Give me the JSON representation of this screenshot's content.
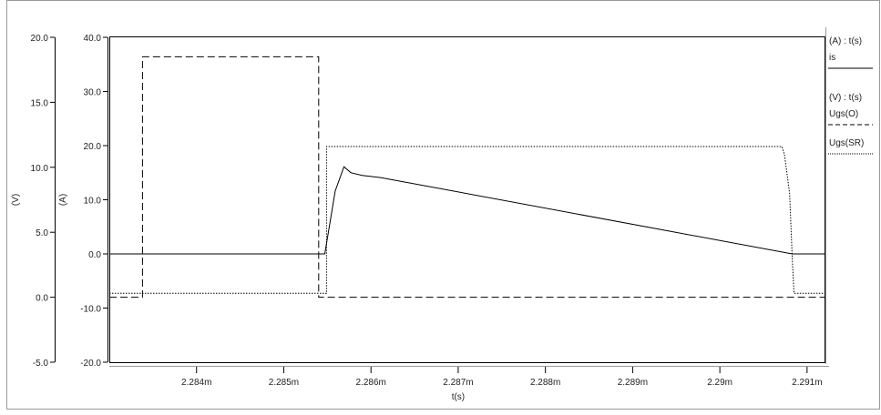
{
  "chart_data": {
    "type": "line",
    "xlabel": "t(s)",
    "x_ticks": [
      "2.284m",
      "2.285m",
      "2.286m",
      "2.287m",
      "2.288m",
      "2.289m",
      "2.29m",
      "2.291m"
    ],
    "x_tick_values": [
      2.284,
      2.285,
      2.286,
      2.287,
      2.288,
      2.289,
      2.29,
      2.291
    ],
    "xlim": [
      2.283,
      2.2912
    ],
    "x_unit": "ms",
    "y_axes": [
      {
        "id": "V",
        "label": "(V)",
        "ylim": [
          -5,
          20
        ],
        "ticks": [
          "-5.0",
          "0.0",
          "5.0",
          "10.0",
          "15.0",
          "20.0"
        ],
        "tick_values": [
          -5,
          0,
          5,
          10,
          15,
          20
        ]
      },
      {
        "id": "A",
        "label": "(A)",
        "ylim": [
          -20,
          40
        ],
        "ticks": [
          "-20.0",
          "-10.0",
          "0.0",
          "10.0",
          "20.0",
          "30.0",
          "40.0"
        ],
        "tick_values": [
          -20,
          -10,
          0,
          10,
          20,
          30,
          40
        ]
      }
    ],
    "legend": {
      "placement": "right",
      "groups": [
        {
          "header": "(A) : t(s)",
          "entries": [
            {
              "name": "is",
              "style": "solid"
            }
          ]
        },
        {
          "header": "(V) : t(s)",
          "entries": [
            {
              "name": "Ugs(O)",
              "style": "dashed"
            },
            {
              "name": "Ugs(SR)",
              "style": "dotted"
            }
          ]
        }
      ]
    },
    "series": [
      {
        "name": "is",
        "axis": "A",
        "style": "solid",
        "color": "#000000",
        "x": [
          2.283,
          2.28547,
          2.28559,
          2.28569,
          2.28577,
          2.2859,
          2.28611,
          2.29083,
          2.2912
        ],
        "y": [
          0,
          0,
          11.6,
          16.1,
          15.0,
          14.5,
          14.1,
          0,
          0
        ]
      },
      {
        "name": "Ugs(O)",
        "axis": "V",
        "style": "dashed",
        "color": "#000000",
        "x": [
          2.283,
          2.28338,
          2.28338,
          2.2854,
          2.2854,
          2.2912
        ],
        "y": [
          0,
          0,
          18.5,
          18.5,
          0,
          0
        ]
      },
      {
        "name": "Ugs(SR)",
        "axis": "V",
        "style": "dotted",
        "color": "#000000",
        "x": [
          2.283,
          2.28549,
          2.28549,
          2.29071,
          2.29074,
          2.2908,
          2.29083,
          2.29085,
          2.2912
        ],
        "y": [
          0.3,
          0.3,
          11.6,
          11.6,
          11.0,
          8.0,
          3.0,
          0.3,
          0.3
        ]
      }
    ],
    "grid": false
  }
}
